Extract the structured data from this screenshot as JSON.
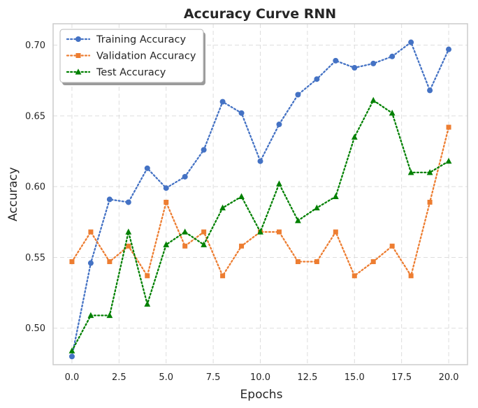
{
  "chart_data": {
    "type": "line",
    "title": "Accuracy Curve RNN",
    "xlabel": "Epochs",
    "ylabel": "Accuracy",
    "xlim": [
      -1.0,
      21.0
    ],
    "ylim": [
      0.4742,
      0.7151
    ],
    "xticks": [
      0.0,
      2.5,
      5.0,
      7.5,
      10.0,
      12.5,
      15.0,
      17.5,
      20.0
    ],
    "xtick_labels": [
      "0.0",
      "2.5",
      "5.0",
      "7.5",
      "10.0",
      "12.5",
      "15.0",
      "17.5",
      "20.0"
    ],
    "yticks": [
      0.5,
      0.55,
      0.6,
      0.65,
      0.7
    ],
    "ytick_labels": [
      "0.50",
      "0.55",
      "0.60",
      "0.65",
      "0.70"
    ],
    "grid": true,
    "legend_position": "top-left",
    "x": [
      0,
      1,
      2,
      3,
      4,
      5,
      6,
      7,
      8,
      9,
      10,
      11,
      12,
      13,
      14,
      15,
      16,
      17,
      18,
      19,
      20
    ],
    "series": [
      {
        "name": "Training Accuracy",
        "color": "#4472c4",
        "marker": "circle",
        "values": [
          0.48,
          0.546,
          0.591,
          0.589,
          0.613,
          0.599,
          0.607,
          0.626,
          0.66,
          0.652,
          0.618,
          0.644,
          0.665,
          0.676,
          0.689,
          0.684,
          0.687,
          0.692,
          0.702,
          0.668,
          0.697
        ]
      },
      {
        "name": "Validation Accuracy",
        "color": "#ed7d31",
        "marker": "square",
        "values": [
          0.547,
          0.568,
          0.547,
          0.558,
          0.537,
          0.589,
          0.558,
          0.568,
          0.537,
          0.558,
          0.568,
          0.568,
          0.547,
          0.547,
          0.568,
          0.537,
          0.547,
          0.558,
          0.537,
          0.589,
          0.642
        ]
      },
      {
        "name": "Test Accuracy",
        "color": "#008000",
        "marker": "triangle",
        "values": [
          0.484,
          0.509,
          0.509,
          0.568,
          0.517,
          0.559,
          0.568,
          0.559,
          0.585,
          0.593,
          0.568,
          0.602,
          0.576,
          0.585,
          0.593,
          0.635,
          0.661,
          0.652,
          0.61,
          0.61,
          0.618
        ]
      }
    ]
  }
}
